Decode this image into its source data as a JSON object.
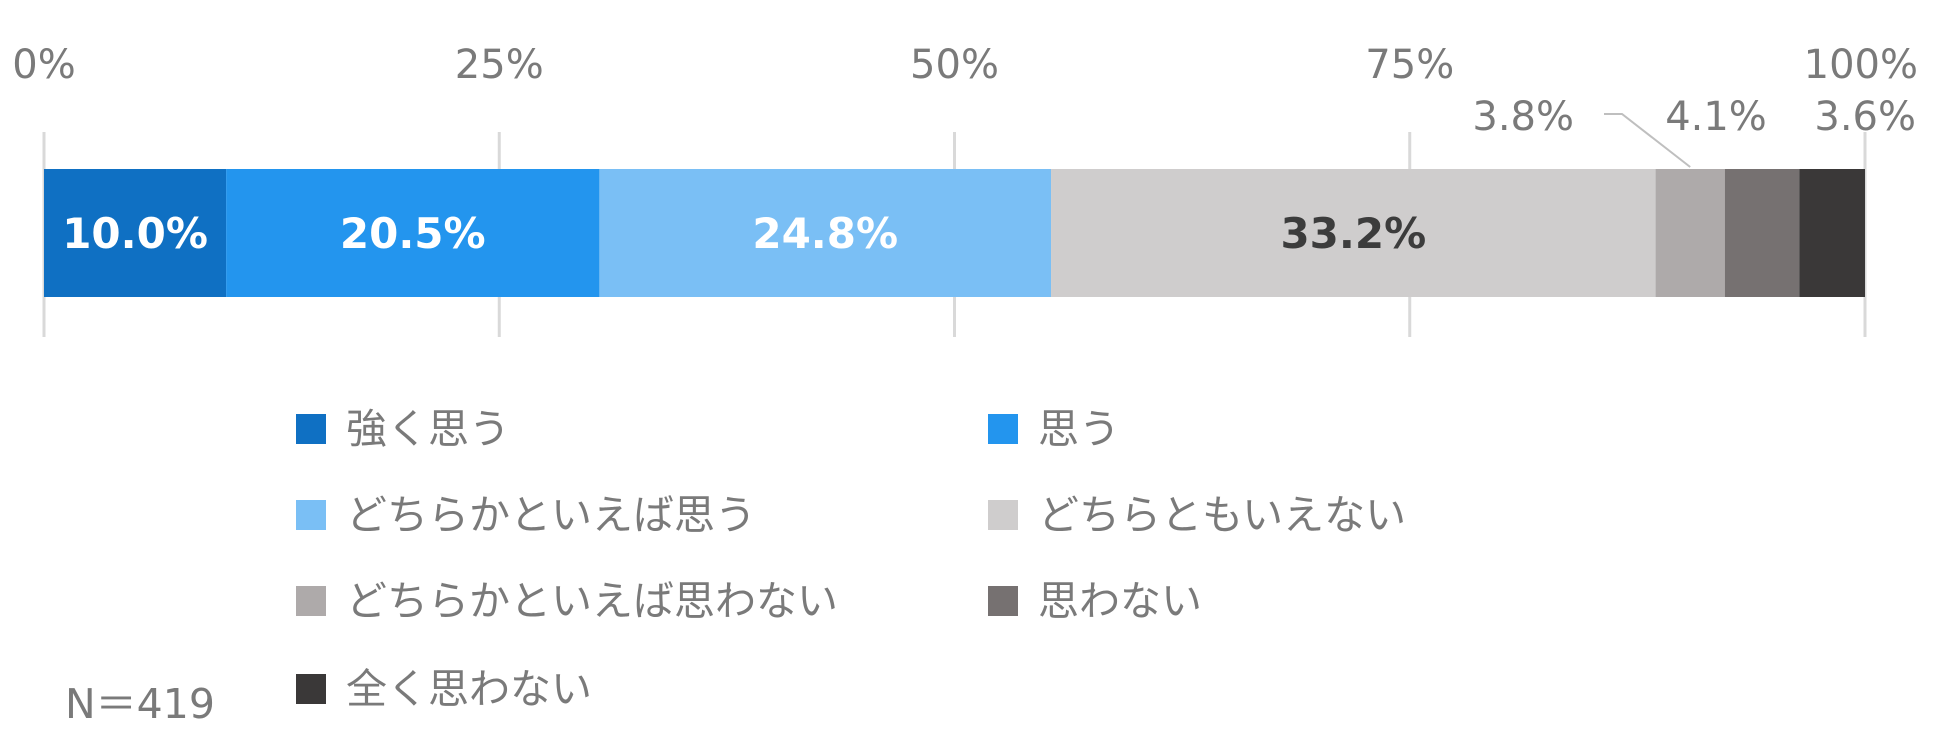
{
  "chart_data": {
    "type": "bar",
    "orientation": "horizontal",
    "stacked": true,
    "percent_stacked": true,
    "x_range": [
      0,
      100
    ],
    "x_ticks": [
      0,
      25,
      50,
      75,
      100
    ],
    "x_tick_labels": [
      "0%",
      "25%",
      "50%",
      "75%",
      "100%"
    ],
    "grid": true,
    "legend_position": "bottom",
    "series": [
      {
        "name": "強く思う",
        "value": 10.0,
        "label": "10.0%",
        "color": "#0f70c3",
        "label_color": "#ffffff"
      },
      {
        "name": "思う",
        "value": 20.5,
        "label": "20.5%",
        "color": "#2395ee",
        "label_color": "#ffffff"
      },
      {
        "name": "どちらかといえば思う",
        "value": 24.8,
        "label": "24.8%",
        "color": "#7abff5",
        "label_color": "#ffffff"
      },
      {
        "name": "どちらともいえない",
        "value": 33.2,
        "label": "33.2%",
        "color": "#cfcdcd",
        "label_color": "#3c3c3c"
      },
      {
        "name": "どちらかといえば思わない",
        "value": 3.8,
        "label": "3.8%",
        "color": "#aeaaaa",
        "label_color": "#7a7a7a"
      },
      {
        "name": "思わない",
        "value": 4.1,
        "label": "4.1%",
        "color": "#767171",
        "label_color": "#7a7a7a"
      },
      {
        "name": "全く思わない",
        "value": 3.6,
        "label": "3.6%",
        "color": "#3a3838",
        "label_color": "#7a7a7a"
      }
    ],
    "sample_size": "N＝419"
  }
}
